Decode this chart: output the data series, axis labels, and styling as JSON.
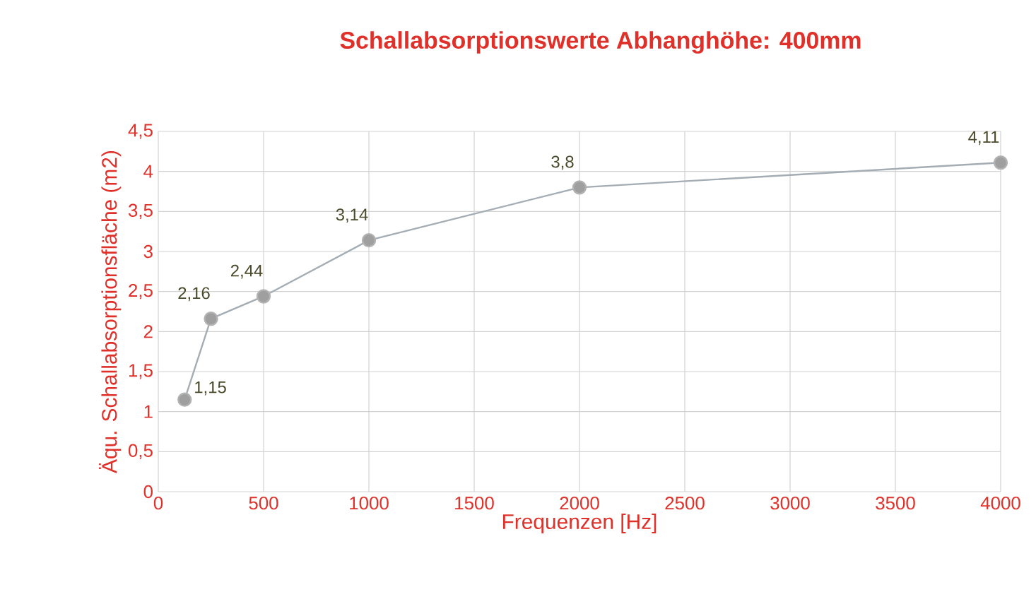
{
  "chart_data": {
    "type": "line",
    "title": "Schallabsorptionswerte Abhanghöhe: 400mm",
    "xlabel": "Frequenzen [Hz]",
    "ylabel": "Äqu. Schallabsorptionsfläche (m2)",
    "x": [
      125,
      250,
      500,
      1000,
      2000,
      4000
    ],
    "values": [
      1.15,
      2.16,
      2.44,
      3.14,
      3.8,
      4.11
    ],
    "value_labels": [
      "1,15",
      "2,16",
      "2,44",
      "3,14",
      "3,8",
      "4,11"
    ],
    "color": "#a4acb4",
    "marker": "circle",
    "line_style": "solid",
    "grid": true,
    "xlim": [
      0,
      4000
    ],
    "xticks": [
      0,
      500,
      1000,
      1500,
      2000,
      2500,
      3000,
      3500,
      4000
    ],
    "ylim": [
      0,
      4.5
    ],
    "yticks": [
      {
        "value": 0,
        "label": "0"
      },
      {
        "value": 0.5,
        "label": "0,5"
      },
      {
        "value": 1,
        "label": "1"
      },
      {
        "value": 1.5,
        "label": "1,5"
      },
      {
        "value": 2,
        "label": "2"
      },
      {
        "value": 2.5,
        "label": "2,5"
      },
      {
        "value": 3,
        "label": "3"
      },
      {
        "value": 3.5,
        "label": "3,5"
      },
      {
        "value": 4,
        "label": "4"
      },
      {
        "value": 4.5,
        "label": "4,5"
      }
    ]
  }
}
